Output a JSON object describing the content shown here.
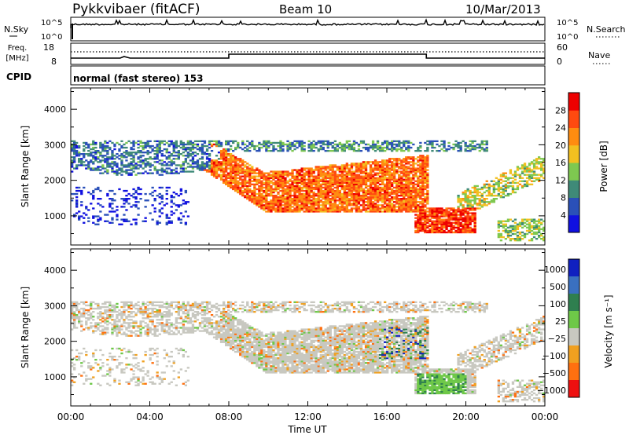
{
  "header": {
    "site": "Pykkvibaer (fitACF)",
    "beam": "Beam 10",
    "date": "10/Mar/2013"
  },
  "noise_panel": {
    "left_label": "N.Sky",
    "right_label": "N.Search",
    "ticks_left": [
      "10^5",
      "10^0"
    ],
    "ticks_right": [
      "10^5",
      "10^0"
    ]
  },
  "freq_panel": {
    "left_label_line1": "Freq.",
    "left_label_line2": "[MHz]",
    "right_label": "Nave",
    "ticks_left": [
      "18",
      "8"
    ],
    "ticks_right": [
      "60",
      "0"
    ]
  },
  "cpid_panel": {
    "label": "CPID",
    "text": "normal (fast stereo) 153"
  },
  "x_axis": {
    "label": "Time UT",
    "ticks": [
      "00:00",
      "04:00",
      "08:00",
      "12:00",
      "16:00",
      "20:00",
      "00:00"
    ]
  },
  "chart_data": [
    {
      "type": "heatmap",
      "name": "power",
      "ylabel": "Slant Range [km]",
      "yticks": [
        1000,
        2000,
        3000,
        4000
      ],
      "ylim": [
        180,
        4600
      ],
      "xlim_hours": [
        0,
        24
      ],
      "colorbar_label": "Power [dB]",
      "colorbar_ticks": [
        "4",
        "8",
        "12",
        "16",
        "20",
        "24",
        "28"
      ],
      "colorbar_colors": [
        "#1010e0",
        "#2a50b8",
        "#3f8a78",
        "#7ec850",
        "#f2c020",
        "#ff8c10",
        "#ff4a10",
        "#ee0000"
      ]
    },
    {
      "type": "heatmap",
      "name": "velocity",
      "ylabel": "Slant Range [km]",
      "yticks": [
        1000,
        2000,
        3000,
        4000
      ],
      "ylim": [
        180,
        4600
      ],
      "xlim_hours": [
        0,
        24
      ],
      "colorbar_label": "Velocity [m s⁻¹]",
      "colorbar_ticks": [
        "1000",
        "500",
        "100",
        "25",
        "−25",
        "−100",
        "−500",
        "−1000"
      ],
      "colorbar_colors": [
        "#1020c0",
        "#3a70c0",
        "#2f7f4f",
        "#6ec848",
        "#c8c8c0",
        "#f0a020",
        "#ff7010",
        "#ee1010"
      ]
    }
  ]
}
